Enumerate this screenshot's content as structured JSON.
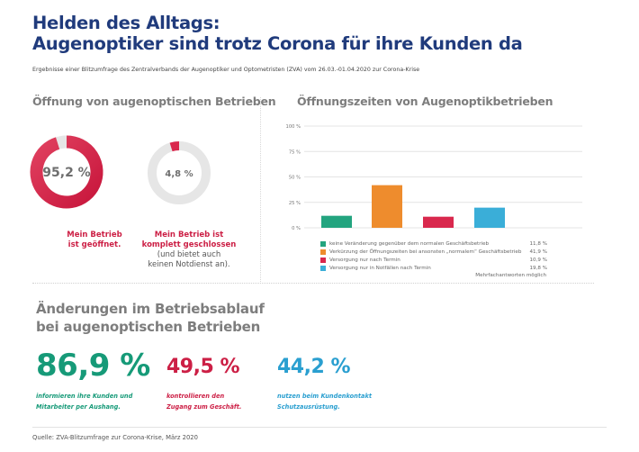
{
  "header": {
    "title_line1": "Helden des Alltags:",
    "title_line2": "Augenoptiker sind trotz Corona für ihre Kunden da",
    "subtitle": "Ergebnisse einer Blitzumfrage des Zentralverbands der Augenoptiker und Optometristen (ZVA) vom 26.03.-01.04.2020 zur Corona-Krise"
  },
  "colors": {
    "title": "#203b7c",
    "red": "#cc1f45",
    "green": "#169a78",
    "blue": "#2a9fd0",
    "orange": "#ee8c2d",
    "ring_gray": "#e6e6e6"
  },
  "opening": {
    "heading": "Öffnung von augenoptischen Betrieben",
    "donuts": [
      {
        "value": 95.2,
        "label": "95,2 %",
        "caption_bold_1": "Mein Betrieb",
        "caption_bold_2": "ist geöffnet.",
        "caption_sub_1": "",
        "caption_sub_2": ""
      },
      {
        "value": 4.8,
        "label": "4,8 %",
        "caption_bold_1": "Mein Betrieb ist",
        "caption_bold_2": "komplett geschlossen",
        "caption_sub_1": "(und bietet auch",
        "caption_sub_2": "keinen Notdienst an)."
      }
    ]
  },
  "chart_data": {
    "type": "bar",
    "title": "Öffnungszeiten von Augenoptikbetrieben",
    "xlabel": "",
    "ylabel": "",
    "ylim": [
      0,
      100
    ],
    "yticks": [
      0,
      25,
      50,
      75,
      100
    ],
    "ytick_labels": [
      "0 %",
      "25 %",
      "50 %",
      "75 %",
      "100 %"
    ],
    "grid": true,
    "categories": [
      "keine Veränderung gegenüber dem normalen Geschäftsbetrieb",
      "Verkürzung der Öffnungszeiten bei ansonsten „normalem“ Geschäftsbetrieb",
      "Versorgung nur nach Termin",
      "Versorgung nur in Notfällen nach Termin"
    ],
    "values": [
      11.8,
      41.9,
      10.9,
      19.8
    ],
    "value_labels": [
      "11,8 %",
      "41,9 %",
      "10,9 %",
      "19,8 %"
    ],
    "colors": [
      "#23a47f",
      "#ee8c2d",
      "#d9284d",
      "#3aaed8"
    ],
    "legend_position": "bottom",
    "note": "Mehrfachantworten möglich"
  },
  "changes": {
    "heading_line1": "Änderungen im Betriebsablauf",
    "heading_line2": "bei augenoptischen Betrieben",
    "stats": [
      {
        "value": "86,9 %",
        "desc_1": "informieren ihre Kunden und",
        "desc_2": "Mitarbeiter per Aushang."
      },
      {
        "value": "49,5 %",
        "desc_1": "kontrollieren den",
        "desc_2": "Zugang zum Geschäft."
      },
      {
        "value": "44,2 %",
        "desc_1": "nutzen beim Kundenkontakt",
        "desc_2": "Schutzausrüstung."
      }
    ]
  },
  "footer": {
    "source": "Quelle: ZVA-Blitzumfrage zur Corona-Krise, März 2020"
  }
}
